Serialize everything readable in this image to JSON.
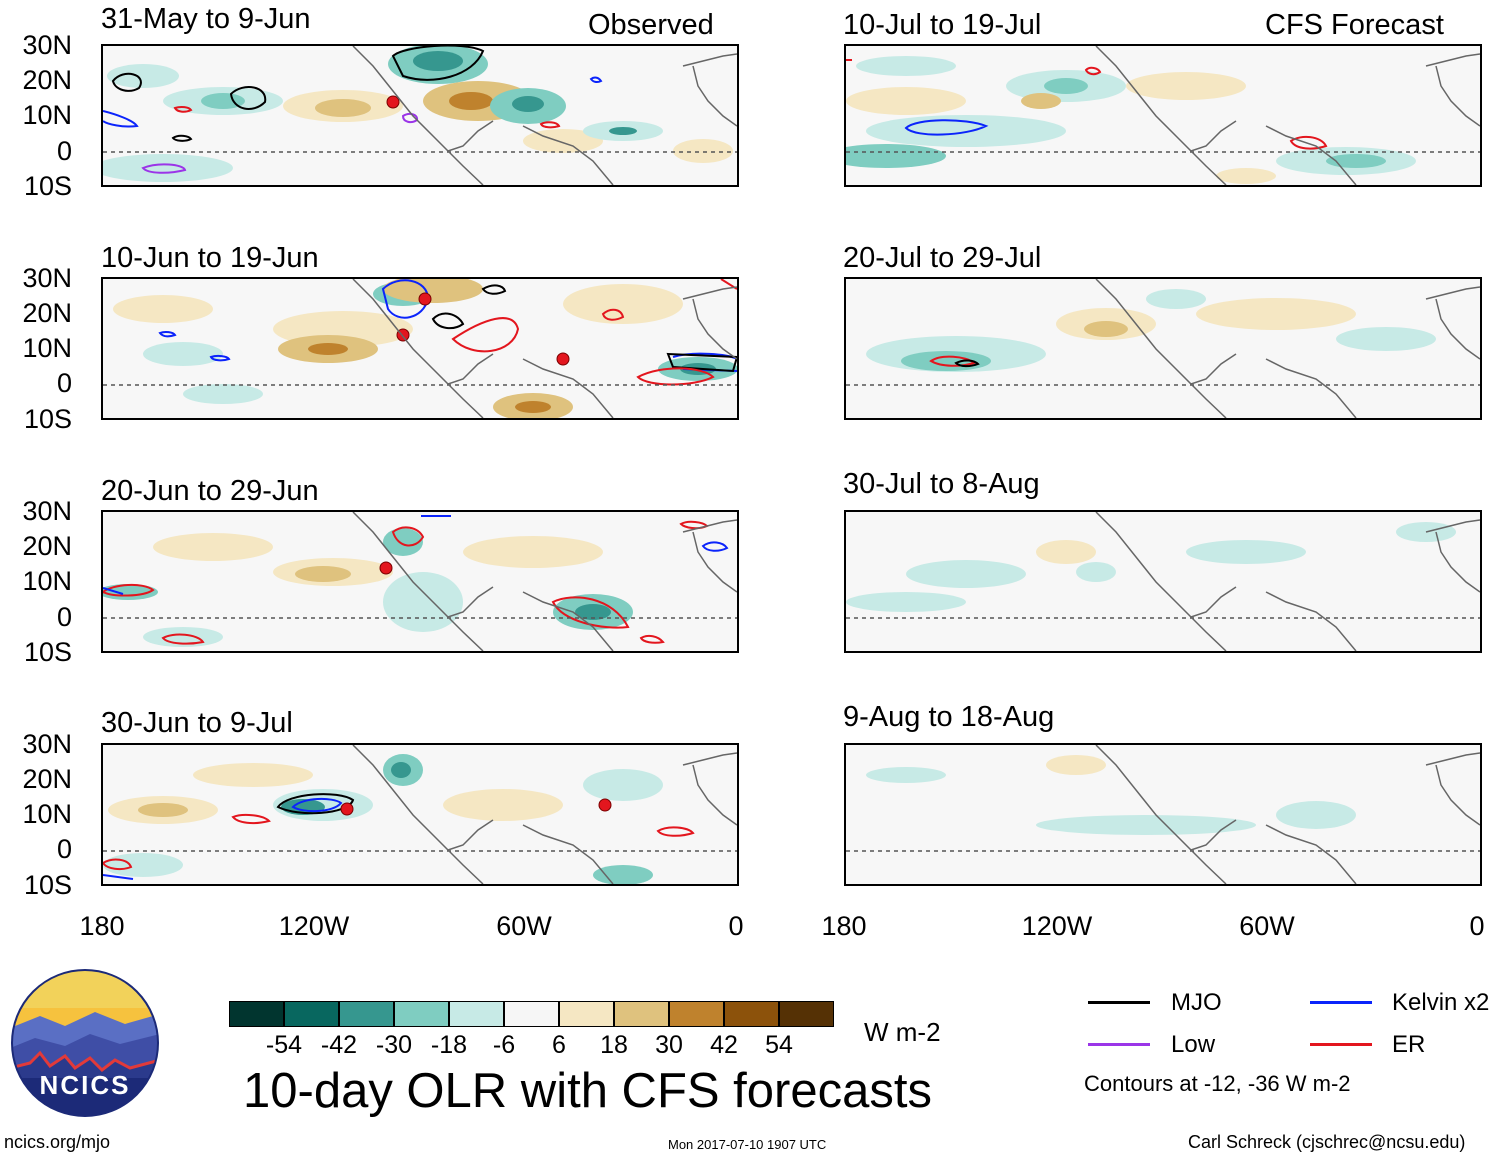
{
  "header": {
    "observed_label": "Observed",
    "forecast_label": "CFS Forecast"
  },
  "panels_left": [
    {
      "title": "31-May to 9-Jun"
    },
    {
      "title": "10-Jun to 19-Jun"
    },
    {
      "title": "20-Jun to 29-Jun"
    },
    {
      "title": "30-Jun to 9-Jul"
    }
  ],
  "panels_right": [
    {
      "title": "10-Jul to 19-Jul"
    },
    {
      "title": "20-Jul to 29-Jul"
    },
    {
      "title": "30-Jul to 8-Aug"
    },
    {
      "title": "9-Aug to 18-Aug"
    }
  ],
  "lat_labels": [
    "30N",
    "20N",
    "10N",
    "0",
    "10S"
  ],
  "lon_labels": [
    "180",
    "120W",
    "60W",
    "0"
  ],
  "colorbar": {
    "labels": [
      "-54",
      "-42",
      "-30",
      "-18",
      "-6",
      "6",
      "18",
      "30",
      "42",
      "54"
    ],
    "colors": [
      "#01352f",
      "#08675f",
      "#36978f",
      "#7fcdc1",
      "#c7eae6",
      "#f6f6f6",
      "#f5e7c3",
      "#dfc27e",
      "#bf822d",
      "#8c520b",
      "#553105"
    ],
    "units": "W m-2"
  },
  "main_title": "10-day OLR with CFS forecasts",
  "legend": {
    "items": [
      {
        "label": "MJO",
        "color": "#000000"
      },
      {
        "label": "Kelvin x2",
        "color": "#0b24fb"
      },
      {
        "label": "Low",
        "color": "#9b35e8"
      },
      {
        "label": "ER",
        "color": "#e3161e"
      }
    ],
    "contour_note": "Contours at -12, -36 W m-2"
  },
  "footer": {
    "website": "ncics.org/mjo",
    "timestamp": "Mon 2017-07-10 1907 UTC",
    "author": "Carl Schreck (cjschrec@ncsu.edu)"
  },
  "logo": {
    "text": "NCICS"
  }
}
